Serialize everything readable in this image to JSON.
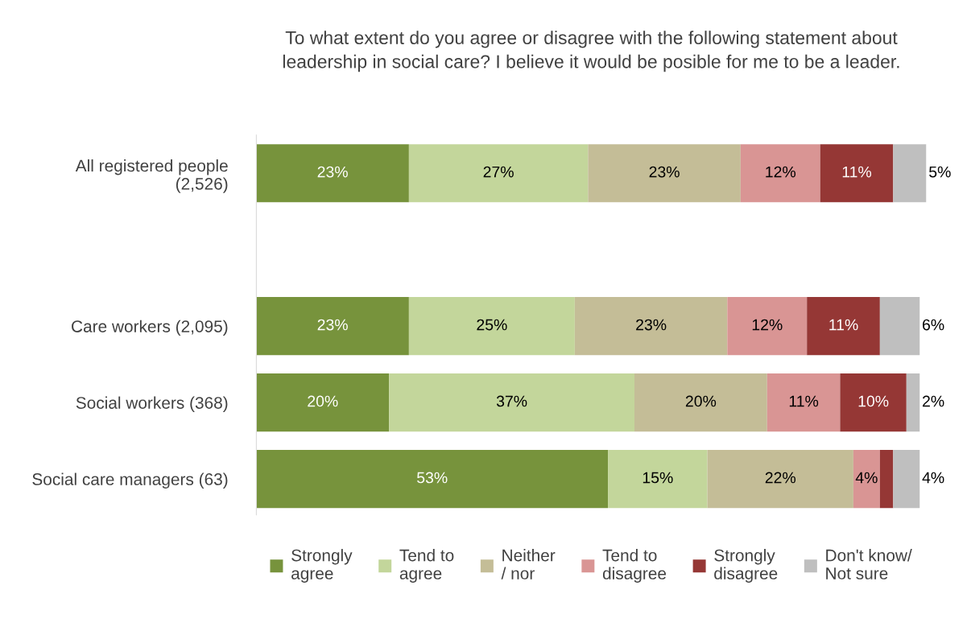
{
  "chart_data": {
    "type": "bar",
    "orientation": "horizontal",
    "stacked": true,
    "title": "To what extent do you agree or disagree with the following statement about\nleadership in social care? I believe it would be posible for me to be a leader.",
    "categories": [
      "All registered people\n(2,526)",
      null,
      "Care workers (2,095)",
      "Social workers (368)",
      "Social care managers (63)"
    ],
    "series": [
      {
        "name": "Strongly\nagree",
        "color": "#77933c",
        "values": [
          23,
          null,
          23,
          20,
          53
        ],
        "value_labels": [
          "23%",
          null,
          "23%",
          "20%",
          "53%"
        ]
      },
      {
        "name": "Tend to\nagree",
        "color": "#c3d69b",
        "values": [
          27,
          null,
          25,
          37,
          15
        ],
        "value_labels": [
          "27%",
          null,
          "25%",
          "37%",
          "15%"
        ]
      },
      {
        "name": "Neither\n/ nor",
        "color": "#c4bd97",
        "values": [
          23,
          null,
          23,
          20,
          22
        ],
        "value_labels": [
          "23%",
          null,
          "23%",
          "20%",
          "22%"
        ]
      },
      {
        "name": "Tend to\ndisagree",
        "color": "#d99594",
        "values": [
          12,
          null,
          12,
          11,
          4
        ],
        "value_labels": [
          "12%",
          null,
          "12%",
          "11%",
          "4%"
        ]
      },
      {
        "name": "Strongly\ndisagree",
        "color": "#953735",
        "values": [
          11,
          null,
          11,
          10,
          2
        ],
        "value_labels": [
          "11%",
          null,
          "11%",
          "10%",
          null
        ]
      },
      {
        "name": "Don't know/\nNot sure",
        "color": "#bfbfbf",
        "values": [
          5,
          null,
          6,
          2,
          4
        ],
        "value_labels": [
          "5%",
          null,
          "6%",
          "2%",
          "4%"
        ]
      }
    ],
    "xlim": [
      0,
      101
    ],
    "tick_labels": "y",
    "grid": false,
    "legend": "bottom"
  }
}
